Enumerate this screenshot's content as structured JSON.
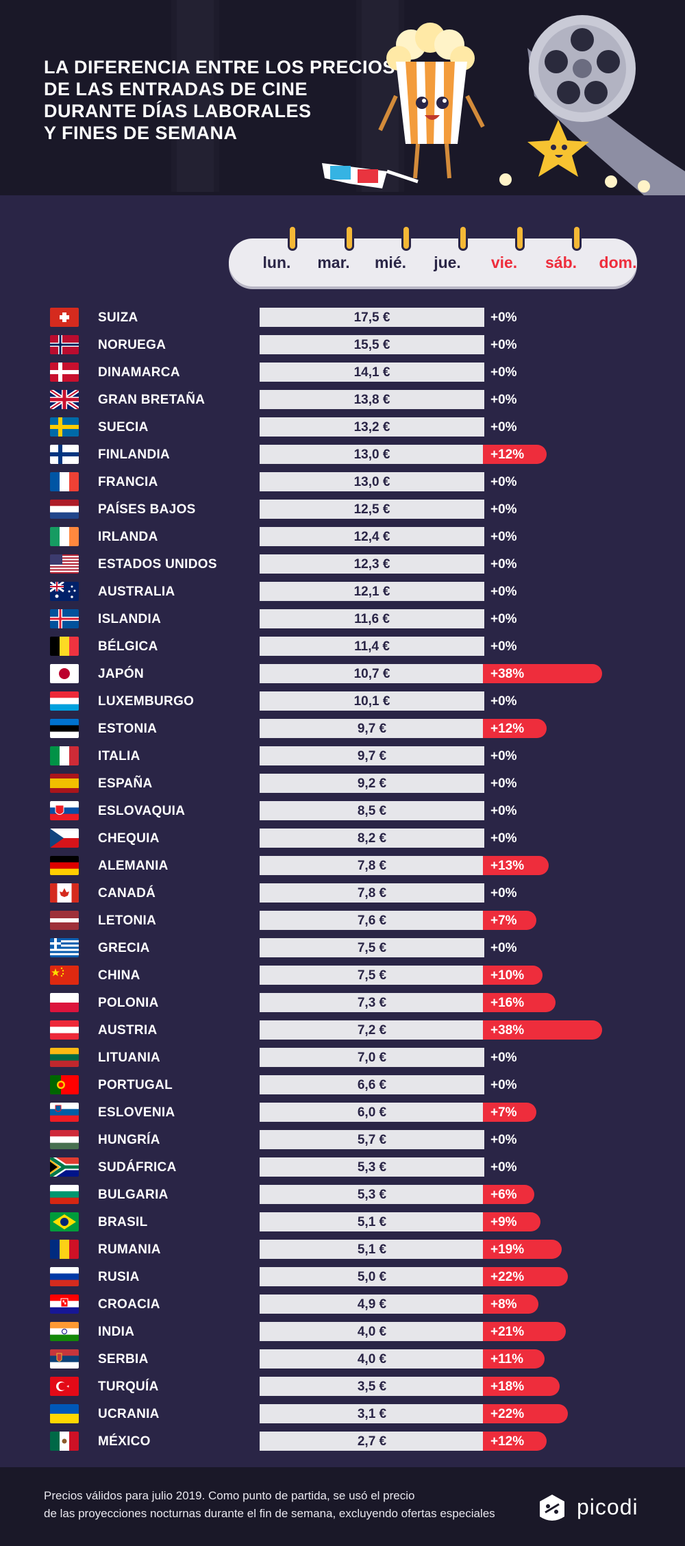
{
  "title": {
    "line1": "LA DIFERENCIA ENTRE LOS PRECIOS",
    "line2": "DE LAS ENTRADAS DE CINE",
    "line3": "DURANTE DÍAS LABORALES",
    "line4": "Y FINES DE SEMANA"
  },
  "days": [
    "lun.",
    "mar.",
    "mié.",
    "jue.",
    "vie.",
    "sáb.",
    "dom."
  ],
  "colors": {
    "background": "#2a2546",
    "header": "#1a1828",
    "accent": "#ee2d3c",
    "bar": "#e6e6ea",
    "ring": "#f5b836"
  },
  "chart_data": {
    "type": "bar",
    "currency": "€",
    "categories": [
      "SUIZA",
      "NORUEGA",
      "DINAMARCA",
      "GRAN BRETAÑA",
      "SUECIA",
      "FINLANDIA",
      "FRANCIA",
      "PAÍSES BAJOS",
      "IRLANDA",
      "ESTADOS UNIDOS",
      "AUSTRALIA",
      "ISLANDIA",
      "BÉLGICA",
      "JAPÓN",
      "LUXEMBURGO",
      "ESTONIA",
      "ITALIA",
      "ESPAÑA",
      "ESLOVAQUIA",
      "CHEQUIA",
      "ALEMANIA",
      "CANADÁ",
      "LETONIA",
      "GRECIA",
      "CHINA",
      "POLONIA",
      "AUSTRIA",
      "LITUANIA",
      "PORTUGAL",
      "ESLOVENIA",
      "HUNGRÍA",
      "SUDÁFRICA",
      "BULGARIA",
      "BRASIL",
      "RUMANIA",
      "RUSIA",
      "CROACIA",
      "INDIA",
      "SERBIA",
      "TURQUÍA",
      "UCRANIA",
      "MÉXICO"
    ],
    "series": [
      {
        "name": "",
        "values": [
          17.5,
          15.5,
          14.1,
          13.8,
          13.2,
          13.0,
          13.0,
          12.5,
          12.4,
          12.3,
          12.1,
          11.6,
          11.4,
          10.7,
          10.1,
          9.7,
          9.7,
          9.2,
          8.5,
          8.2,
          7.8,
          7.8,
          7.6,
          7.5,
          7.5,
          7.3,
          7.2,
          7.0,
          6.6,
          6.0,
          5.7,
          5.3,
          5.3,
          5.1,
          5.1,
          5.0,
          4.9,
          4.0,
          4.0,
          3.5,
          3.1,
          2.7
        ]
      },
      {
        "name": "",
        "values": [
          0,
          0,
          0,
          0,
          0,
          12,
          0,
          0,
          0,
          0,
          0,
          0,
          0,
          38,
          0,
          12,
          0,
          0,
          0,
          0,
          13,
          0,
          7,
          0,
          10,
          16,
          38,
          0,
          0,
          7,
          0,
          0,
          6,
          9,
          19,
          22,
          8,
          21,
          11,
          18,
          22,
          12
        ]
      }
    ],
    "price_labels": [
      "17,5 €",
      "15,5 €",
      "14,1 €",
      "13,8 €",
      "13,2 €",
      "13,0 €",
      "13,0 €",
      "12,5 €",
      "12,4 €",
      "12,3 €",
      "12,1 €",
      "11,6 €",
      "11,4 €",
      "10,7 €",
      "10,1 €",
      "9,7 €",
      "9,7 €",
      "9,2 €",
      "8,5 €",
      "8,2 €",
      "7,8 €",
      "7,8 €",
      "7,6 €",
      "7,5 €",
      "7,5 €",
      "7,3 €",
      "7,2 €",
      "7,0 €",
      "6,6 €",
      "6,0 €",
      "5,7 €",
      "5,3 €",
      "5,3 €",
      "5,1 €",
      "5,1 €",
      "5,0 €",
      "4,9 €",
      "4,0 €",
      "4,0 €",
      "3,5 €",
      "3,1 €",
      "2,7 €"
    ],
    "increase_labels": [
      "+0%",
      "+0%",
      "+0%",
      "+0%",
      "+0%",
      "+12%",
      "+0%",
      "+0%",
      "+0%",
      "+0%",
      "+0%",
      "+0%",
      "+0%",
      "+38%",
      "+0%",
      "+12%",
      "+0%",
      "+0%",
      "+0%",
      "+0%",
      "+13%",
      "+0%",
      "+7%",
      "+0%",
      "+10%",
      "+16%",
      "+38%",
      "+0%",
      "+0%",
      "+7%",
      "+0%",
      "+0%",
      "+6%",
      "+9%",
      "+19%",
      "+22%",
      "+8%",
      "+21%",
      "+11%",
      "+18%",
      "+22%",
      "+12%"
    ],
    "flag_icons": [
      "flag-ch",
      "flag-no",
      "flag-dk",
      "flag-gb",
      "flag-se",
      "flag-fi",
      "flag-fr",
      "flag-nl",
      "flag-ie",
      "flag-us",
      "flag-au",
      "flag-is",
      "flag-be",
      "flag-jp",
      "flag-lu",
      "flag-ee",
      "flag-it",
      "flag-es",
      "flag-sk",
      "flag-cz",
      "flag-de",
      "flag-ca",
      "flag-lv",
      "flag-gr",
      "flag-cn",
      "flag-pl",
      "flag-at",
      "flag-lt",
      "flag-pt",
      "flag-si",
      "flag-hu",
      "flag-za",
      "flag-bg",
      "flag-br",
      "flag-ro",
      "flag-ru",
      "flag-hr",
      "flag-in",
      "flag-rs",
      "flag-tr",
      "flag-ua",
      "flag-mx"
    ]
  },
  "footer": {
    "note_line1": "Precios válidos para julio 2019. Como punto de partida, se usó el precio",
    "note_line2": "de las proyecciones nocturnas durante el fin de semana, excluyendo ofertas especiales",
    "brand": "picodi"
  }
}
